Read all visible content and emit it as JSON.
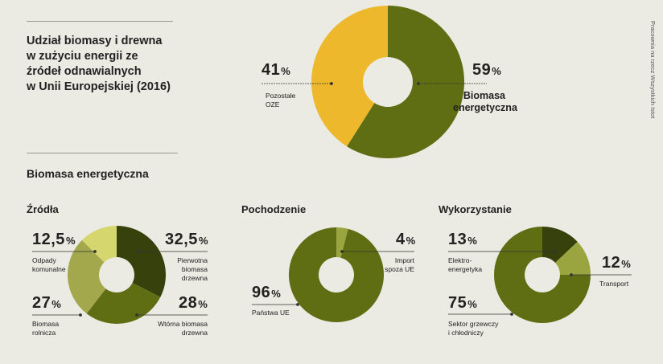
{
  "credit": "Pracownia na rzecz Wszystkich Istot",
  "top": {
    "title": "Udział biomasy i drewna\nw zużyciu energii ze\nźródeł odnawialnych\nw Unii Europejskiej (2016)"
  },
  "section_title": "Biomasa energetyczna",
  "subtitles": {
    "sources": "Źródła",
    "origin": "Pochodzenie",
    "use": "Wykorzystanie"
  },
  "labels": {
    "main_left_value": "41",
    "main_left_name": "Pozostałe\nOZE",
    "main_right_value": "59",
    "main_right_name": "Biomasa\nenergetyczna",
    "src_1_value": "12,5",
    "src_1_name": "Odpady\nkomunalne",
    "src_2_value": "32,5",
    "src_2_name": "Pierwotna\nbiomasa\ndrzewna",
    "src_3_value": "27",
    "src_3_name": "Biomasa\nrolnicza",
    "src_4_value": "28",
    "src_4_name": "Wtórna biomasa\ndrzewna",
    "org_1_value": "4",
    "org_1_name": "Import\nspoza UE",
    "org_2_value": "96",
    "org_2_name": "Państwa UE",
    "use_1_value": "13",
    "use_1_name": "Elektro-\nenergetyka",
    "use_2_value": "12",
    "use_2_name": "Transport",
    "use_3_value": "75",
    "use_3_name": "Sektor grzewczy\ni chłodniczy",
    "unit": "%"
  },
  "colors": {
    "background": "#ebeae3",
    "olive": "#5f6e12",
    "yellow": "#edb82b",
    "light": "#d6d66f",
    "mid": "#a2a84b",
    "dark": "#37410b",
    "lightgreen": "#9ba53f"
  },
  "chart_data": [
    {
      "type": "pie",
      "title": "Udział biomasy i drewna w zużyciu energii ze źródeł odnawialnych w Unii Europejskiej (2016)",
      "categories": [
        "Biomasa energetyczna",
        "Pozostałe OZE"
      ],
      "values": [
        59,
        41
      ]
    },
    {
      "type": "pie",
      "title": "Źródła",
      "categories": [
        "Pierwotna biomasa drzewna",
        "Wtórna biomasa drzewna",
        "Biomasa rolnicza",
        "Odpady komunalne"
      ],
      "values": [
        32.5,
        28,
        27,
        12.5
      ]
    },
    {
      "type": "pie",
      "title": "Pochodzenie",
      "categories": [
        "Import spoza UE",
        "Państwa UE"
      ],
      "values": [
        4,
        96
      ]
    },
    {
      "type": "pie",
      "title": "Wykorzystanie",
      "categories": [
        "Elektroenergetyka",
        "Transport",
        "Sektor grzewczy i chłodniczy"
      ],
      "values": [
        13,
        12,
        75
      ]
    }
  ]
}
